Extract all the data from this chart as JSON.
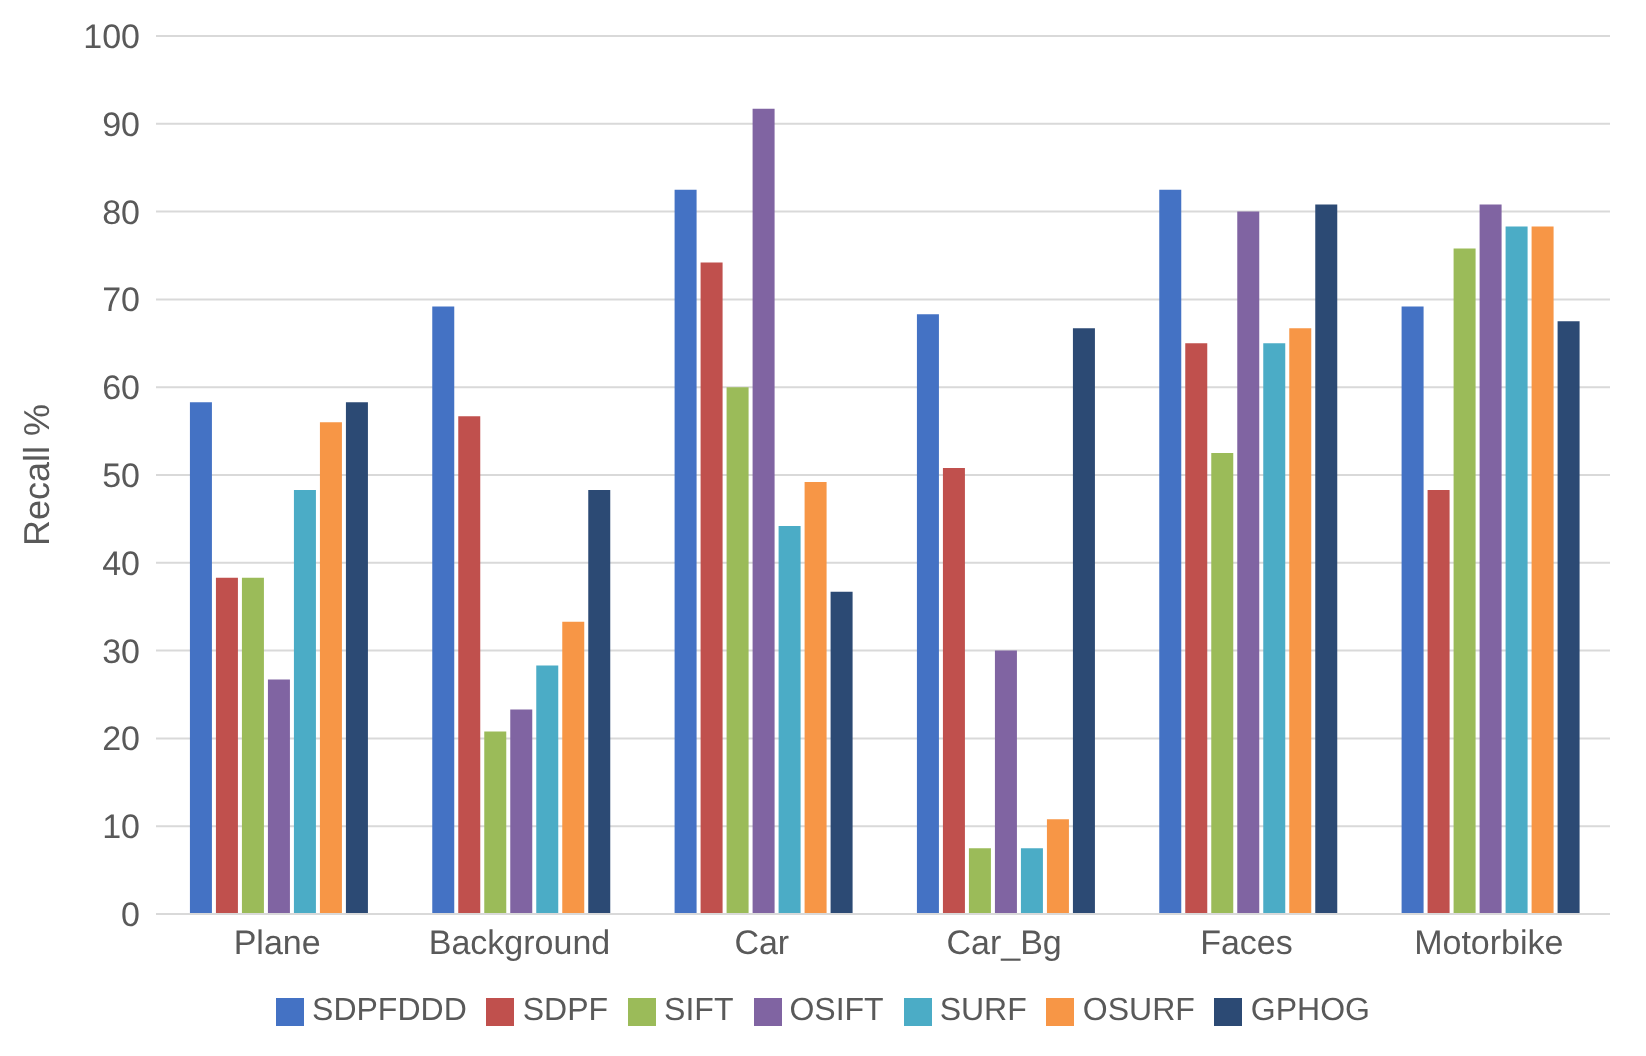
{
  "chart_data": {
    "type": "bar",
    "ylabel": "Recall %",
    "categories": [
      "Plane",
      "Background",
      "Car",
      "Car_Bg",
      "Faces",
      "Motorbike"
    ],
    "series": [
      {
        "name": "SDPFDDD",
        "color": "#4472c4",
        "values": [
          58.3,
          69.2,
          82.5,
          68.3,
          82.5,
          69.2
        ]
      },
      {
        "name": "SDPF",
        "color": "#c0504d",
        "values": [
          38.3,
          56.7,
          74.2,
          50.8,
          65,
          48.3
        ]
      },
      {
        "name": "SIFT",
        "color": "#9bbb59",
        "values": [
          38.3,
          20.8,
          60,
          7.5,
          52.5,
          75.8
        ]
      },
      {
        "name": "OSIFT",
        "color": "#8064a2",
        "values": [
          26.7,
          23.3,
          91.7,
          30,
          80,
          80.8
        ]
      },
      {
        "name": "SURF",
        "color": "#4bacc6",
        "values": [
          48.3,
          28.3,
          44.2,
          7.5,
          65,
          78.3
        ]
      },
      {
        "name": "OSURF",
        "color": "#f79646",
        "values": [
          56,
          33.3,
          49.2,
          10.8,
          66.7,
          78.3
        ]
      },
      {
        "name": "GPHOG",
        "color": "#2c4a74",
        "values": [
          58.3,
          48.3,
          36.7,
          66.7,
          80.8,
          67.5
        ]
      }
    ],
    "ylim": [
      0,
      100
    ],
    "yticks": [
      0,
      10,
      20,
      30,
      40,
      50,
      60,
      70,
      80,
      90,
      100
    ],
    "grid": "y",
    "legend": "bottom"
  }
}
